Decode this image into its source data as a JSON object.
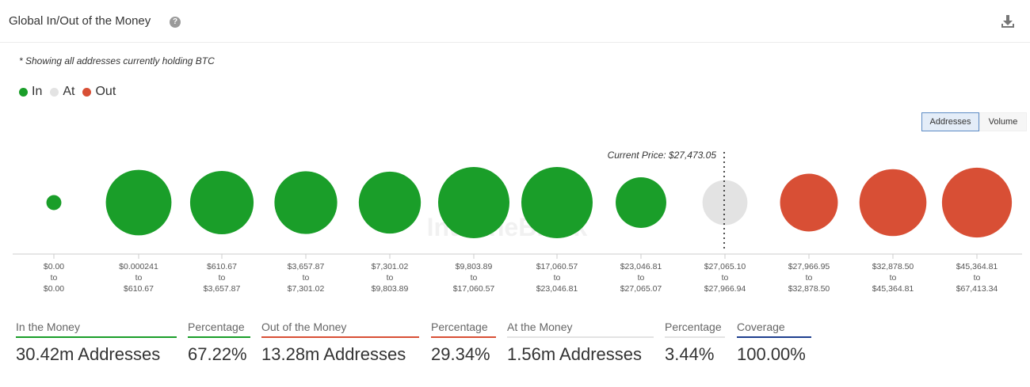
{
  "header": {
    "title": "Global In/Out of the Money",
    "help_icon": "question-circle-icon",
    "download_icon": "download-icon"
  },
  "note": "* Showing all addresses currently holding BTC",
  "legend": [
    {
      "label": "In",
      "color": "#1a9e29"
    },
    {
      "label": "At",
      "color": "#e3e3e3"
    },
    {
      "label": "Out",
      "color": "#d84f35"
    }
  ],
  "toggle": {
    "addresses": "Addresses",
    "volume": "Volume",
    "active": "Addresses"
  },
  "watermark": "IntoTheBlock",
  "chart_data": {
    "type": "bubble",
    "current_price_label": "Current Price: $27,473.05",
    "current_price": 27473.05,
    "buckets": [
      {
        "from": "$0.00",
        "to": "$0.00",
        "status": "In",
        "relative_size": 0.21
      },
      {
        "from": "$0.000241",
        "to": "$610.67",
        "status": "In",
        "relative_size": 0.92
      },
      {
        "from": "$610.67",
        "to": "$3,657.87",
        "status": "In",
        "relative_size": 0.89
      },
      {
        "from": "$3,657.87",
        "to": "$7,301.02",
        "status": "In",
        "relative_size": 0.88
      },
      {
        "from": "$7,301.02",
        "to": "$9,803.89",
        "status": "In",
        "relative_size": 0.87
      },
      {
        "from": "$9,803.89",
        "to": "$17,060.57",
        "status": "In",
        "relative_size": 1.0
      },
      {
        "from": "$17,060.57",
        "to": "$23,046.81",
        "status": "In",
        "relative_size": 1.0
      },
      {
        "from": "$23,046.81",
        "to": "$27,065.07",
        "status": "In",
        "relative_size": 0.71
      },
      {
        "from": "$27,065.10",
        "to": "$27,966.94",
        "status": "At",
        "relative_size": 0.63
      },
      {
        "from": "$27,966.95",
        "to": "$32,878.50",
        "status": "Out",
        "relative_size": 0.81
      },
      {
        "from": "$32,878.50",
        "to": "$45,364.81",
        "status": "Out",
        "relative_size": 0.94
      },
      {
        "from": "$45,364.81",
        "to": "$67,413.34",
        "status": "Out",
        "relative_size": 0.98
      }
    ],
    "range_separator": "to"
  },
  "stats": [
    {
      "label": "In the Money",
      "value": "30.42m Addresses",
      "color": "#1a9e29"
    },
    {
      "label": "Percentage",
      "value": "67.22%",
      "color": "#1a9e29"
    },
    {
      "label": "Out of the Money",
      "value": "13.28m Addresses",
      "color": "#d84f35"
    },
    {
      "label": "Percentage",
      "value": "29.34%",
      "color": "#d84f35"
    },
    {
      "label": "At the Money",
      "value": "1.56m Addresses",
      "color": "#e3e3e3"
    },
    {
      "label": "Percentage",
      "value": "3.44%",
      "color": "#e3e3e3"
    },
    {
      "label": "Coverage",
      "value": "100.00%",
      "color": "#1e3f8f"
    }
  ]
}
